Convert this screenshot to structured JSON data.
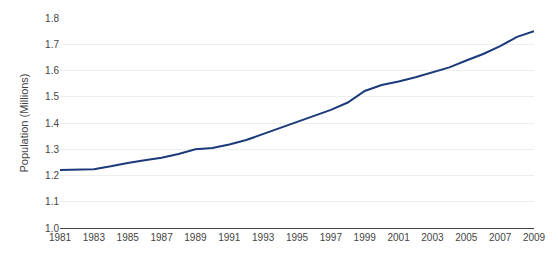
{
  "chart_data": {
    "type": "line",
    "x": [
      1981,
      1982,
      1983,
      1984,
      1985,
      1986,
      1987,
      1988,
      1989,
      1990,
      1991,
      1992,
      1993,
      1994,
      1995,
      1996,
      1997,
      1998,
      1999,
      2000,
      2001,
      2002,
      2003,
      2004,
      2005,
      2006,
      2007,
      2008,
      2009
    ],
    "values": [
      1.221,
      1.222,
      1.224,
      1.235,
      1.248,
      1.258,
      1.268,
      1.282,
      1.3,
      1.305,
      1.318,
      1.335,
      1.358,
      1.382,
      1.405,
      1.428,
      1.45,
      1.478,
      1.522,
      1.545,
      1.558,
      1.574,
      1.592,
      1.612,
      1.638,
      1.663,
      1.693,
      1.728,
      1.75
    ],
    "color": "#1a3a7a",
    "ylabel": "Population (Millions)",
    "xlim": [
      1981,
      2009
    ],
    "xticks": [
      1981,
      1983,
      1985,
      1987,
      1989,
      1991,
      1993,
      1995,
      1997,
      1999,
      2001,
      2003,
      2005,
      2007,
      2009
    ],
    "ylim": [
      1.0,
      1.8
    ],
    "yticks": [
      {
        "value": 1,
        "label": "1.0"
      },
      1.1,
      1.2,
      1.3,
      1.4,
      1.5,
      1.6,
      1.7,
      1.8
    ],
    "grid": "y"
  }
}
